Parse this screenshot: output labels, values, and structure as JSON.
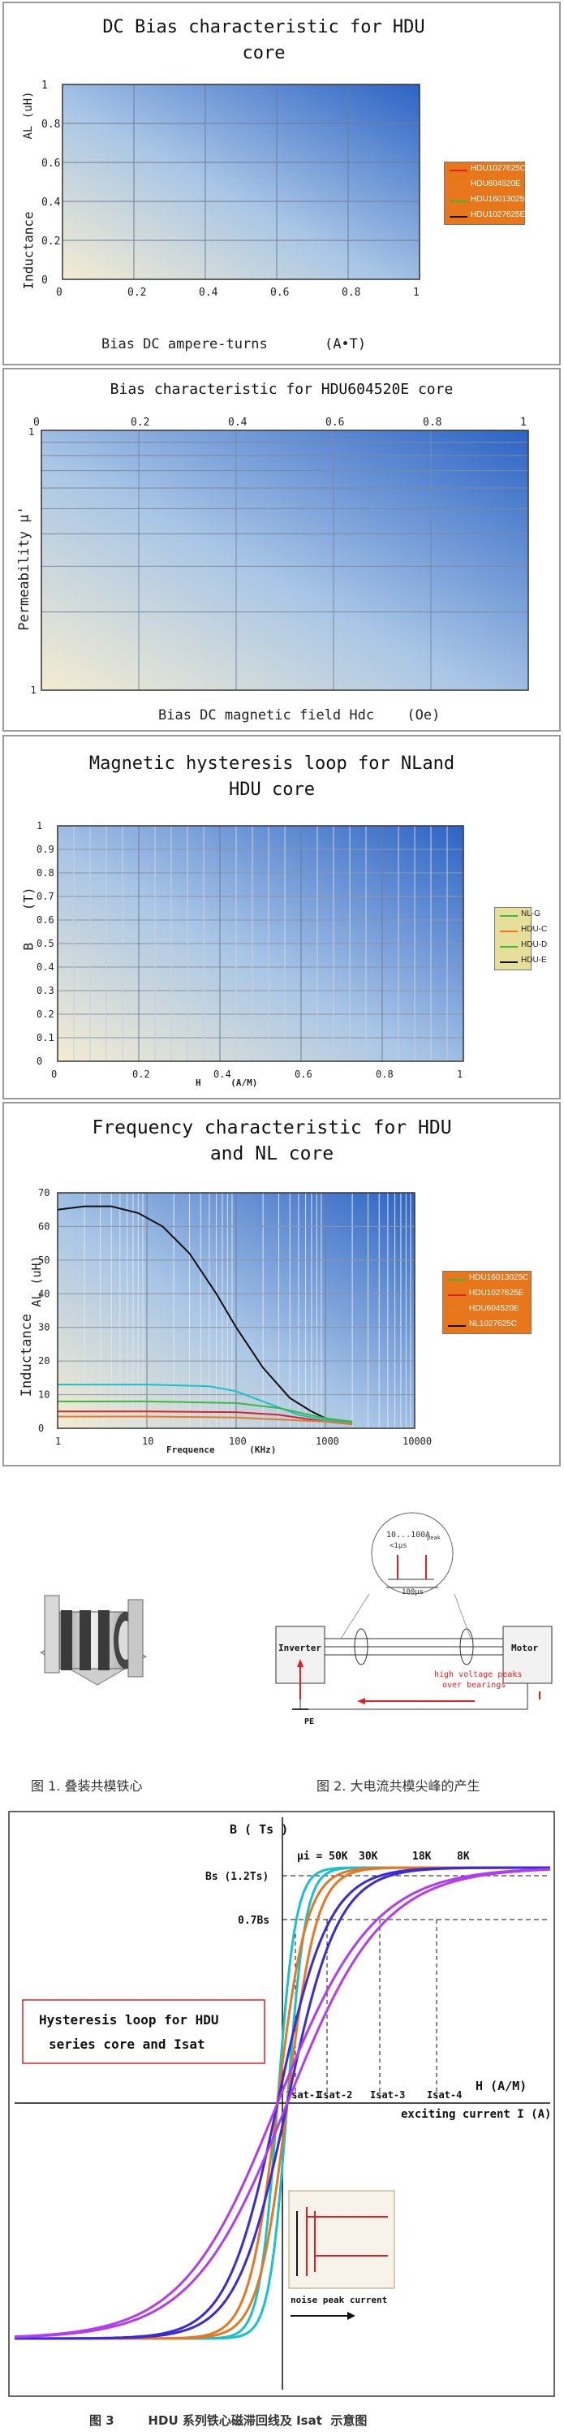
{
  "colors": {
    "panel_border": "#9a9a9a",
    "legend_bg": "#e8771c",
    "legend_bg_2": "#e6df9a",
    "series_black": "#111111",
    "series_red": "#e02020",
    "series_green": "#3cb83c",
    "series_orange": "#e87722",
    "series_cyan": "#19c2c9",
    "series_blue": "#3a2ad8",
    "series_purple": "#b23cf0"
  },
  "chart_data": [
    {
      "type": "line",
      "title": "DC Bias  characteristic for HDU core",
      "xlabel": "Bias  DC ampere-turns",
      "xunit": "(A•T)",
      "ylabel": "Inductance",
      "yunit": "AL  (uH)",
      "xlim": [
        0,
        1
      ],
      "ylim": [
        0,
        1
      ],
      "xticks": [
        "0",
        "0.2",
        "0.4",
        "0.6",
        "0.8",
        "1"
      ],
      "yticks": [
        "0",
        "0.2",
        "0.4",
        "0.6",
        "0.8",
        "1"
      ],
      "grid": true,
      "legend_position": "right",
      "legend": [
        "HDU1027625C",
        "HDU604520E",
        "HDU16013025E",
        "HDU1027625E"
      ],
      "series": []
    },
    {
      "type": "line",
      "title": "Bias characteristic for HDU604520E core",
      "xlabel": "Bias DC magnetic field  Hdc",
      "xunit": "(Oe)",
      "ylabel": "Permeability  μ'",
      "xlim": [
        0,
        1
      ],
      "ylim": [
        0.1,
        1
      ],
      "yscale": "log",
      "xticks": [
        "0",
        "0.2",
        "0.4",
        "0.6",
        "0.8",
        "1"
      ],
      "yticks": [
        "0.1",
        "1"
      ],
      "grid": true,
      "series": []
    },
    {
      "type": "line",
      "title": "Magnetic hysteresis loop for NLand HDU  core",
      "xlabel": "H",
      "xunit": "(A/M)",
      "ylabel": "B",
      "yunit": "(T)",
      "xlim": [
        0,
        1
      ],
      "ylim": [
        0,
        1
      ],
      "xticks": [
        "0",
        "0.2",
        "0.4",
        "0.6",
        "0.8",
        "1"
      ],
      "yticks": [
        "0",
        "0.1",
        "0.2",
        "0.3",
        "0.4",
        "0.5",
        "0.6",
        "0.7",
        "0.8",
        "0.9",
        "1"
      ],
      "grid": true,
      "legend_position": "right",
      "legend": [
        "NL-G",
        "HDU-C",
        "HDU-D",
        "HDU-E"
      ],
      "series": []
    },
    {
      "type": "line",
      "title": "Frequency characteristic for HDU and NL core",
      "xlabel": "Frequence",
      "xunit": "(KHz)",
      "ylabel": "Inductance",
      "yunit": "AL  (uH)",
      "xscale": "log",
      "xlim": [
        1,
        10000
      ],
      "ylim": [
        0,
        70
      ],
      "xticks": [
        "1",
        "10",
        "100",
        "1000",
        "10000"
      ],
      "yticks": [
        "0",
        "10",
        "20",
        "30",
        "40",
        "50",
        "60",
        "70"
      ],
      "grid": true,
      "legend_position": "right",
      "legend": [
        "HDU16013025C",
        "HDU1027625E",
        "HDU604520E",
        "NL1027625C"
      ],
      "series": [
        {
          "color": "#111111",
          "x": [
            1,
            2,
            4,
            8,
            15,
            30,
            60,
            100,
            200,
            400,
            700,
            1000,
            2000
          ],
          "values": [
            65,
            66,
            66,
            64,
            60,
            52,
            40,
            30,
            18,
            9,
            5,
            3,
            1.5
          ]
        },
        {
          "color": "#19c2c9",
          "x": [
            1,
            10,
            50,
            100,
            200,
            500,
            1000,
            2000
          ],
          "values": [
            13,
            13,
            12.5,
            11,
            8,
            4,
            2.5,
            1.5
          ]
        },
        {
          "color": "#3cb83c",
          "x": [
            1,
            10,
            100,
            300,
            1000,
            2000
          ],
          "values": [
            8,
            8,
            7.5,
            6,
            3,
            2
          ]
        },
        {
          "color": "#e02020",
          "x": [
            1,
            10,
            100,
            300,
            1000,
            2000
          ],
          "values": [
            5,
            5,
            4.8,
            4,
            2,
            1.2
          ]
        },
        {
          "color": "#e87722",
          "x": [
            1,
            10,
            100,
            1000,
            2000
          ],
          "values": [
            3.5,
            3.5,
            3.2,
            2,
            1.2
          ]
        }
      ]
    },
    {
      "type": "line",
      "title": "Hysteresis loop for HDU series core and Isat",
      "xlabel": "H  (A/M)",
      "xlabel2": "exciting current  I  (A)",
      "ylabel": "B ( Ts )",
      "y_marks": [
        "Bs (1.2Ts)",
        "0.7Bs"
      ],
      "x_marks": [
        "Isat-1",
        "Isat-2",
        "Isat-3",
        "Isat-4"
      ],
      "series_labels": [
        "μi = 50K",
        "30K",
        "18K",
        "8K"
      ],
      "series": [
        {
          "name": "μi = 50K",
          "color": "#19c2c9"
        },
        {
          "name": "30K",
          "color": "#e87722"
        },
        {
          "name": "18K",
          "color": "#3a2ad8"
        },
        {
          "name": "8K",
          "color": "#b23cf0"
        }
      ]
    }
  ],
  "figure1": {
    "caption": "图 1. 叠装共模铁心"
  },
  "figure2": {
    "caption": "图 2. 大电流共模尖峰的产生",
    "inverter": "Inverter",
    "motor": "Motor",
    "pe": "PE",
    "peak_label": "10...100A",
    "peak_sub": "peak",
    "pulse_width": "<1µs",
    "period": "100µs",
    "note1": "high voltage peaks",
    "note2": "over bearings"
  },
  "figure3": {
    "caption": "图 3        HDU 系列铁心磁滞回线及 Isat  示意图",
    "box_title": "Hysteresis loop for HDU series core and Isat",
    "inset_label": "noise peak current"
  }
}
